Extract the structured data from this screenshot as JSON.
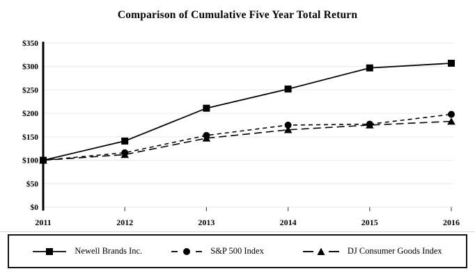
{
  "title": "Comparison of Cumulative Five Year Total Return",
  "chart_data": {
    "type": "line",
    "categories": [
      "2011",
      "2012",
      "2013",
      "2014",
      "2015",
      "2016"
    ],
    "series": [
      {
        "name": "Newell Brands Inc.",
        "marker": "square",
        "line": "solid",
        "values": [
          100,
          141,
          211,
          252,
          297,
          307
        ]
      },
      {
        "name": "S&P 500 Index",
        "marker": "circle",
        "line": "dashed-short",
        "values": [
          100,
          116,
          153,
          175,
          177,
          198
        ]
      },
      {
        "name": "DJ Consumer Goods Index",
        "marker": "triangle",
        "line": "dashed-long",
        "values": [
          100,
          112,
          147,
          165,
          175,
          183
        ]
      }
    ],
    "xlabel": "",
    "ylabel": "",
    "ylim": [
      0,
      350
    ],
    "y_tick_step": 50,
    "y_tick_labels": [
      "$0",
      "$50",
      "$100",
      "$150",
      "$200",
      "$250",
      "$300",
      "$350"
    ],
    "grid": "horizontal",
    "legend_position": "bottom-boxed",
    "colors": {
      "series": "#000000",
      "grid": "#e7e7e7",
      "axis": "#000000",
      "tick": "#555555"
    }
  }
}
